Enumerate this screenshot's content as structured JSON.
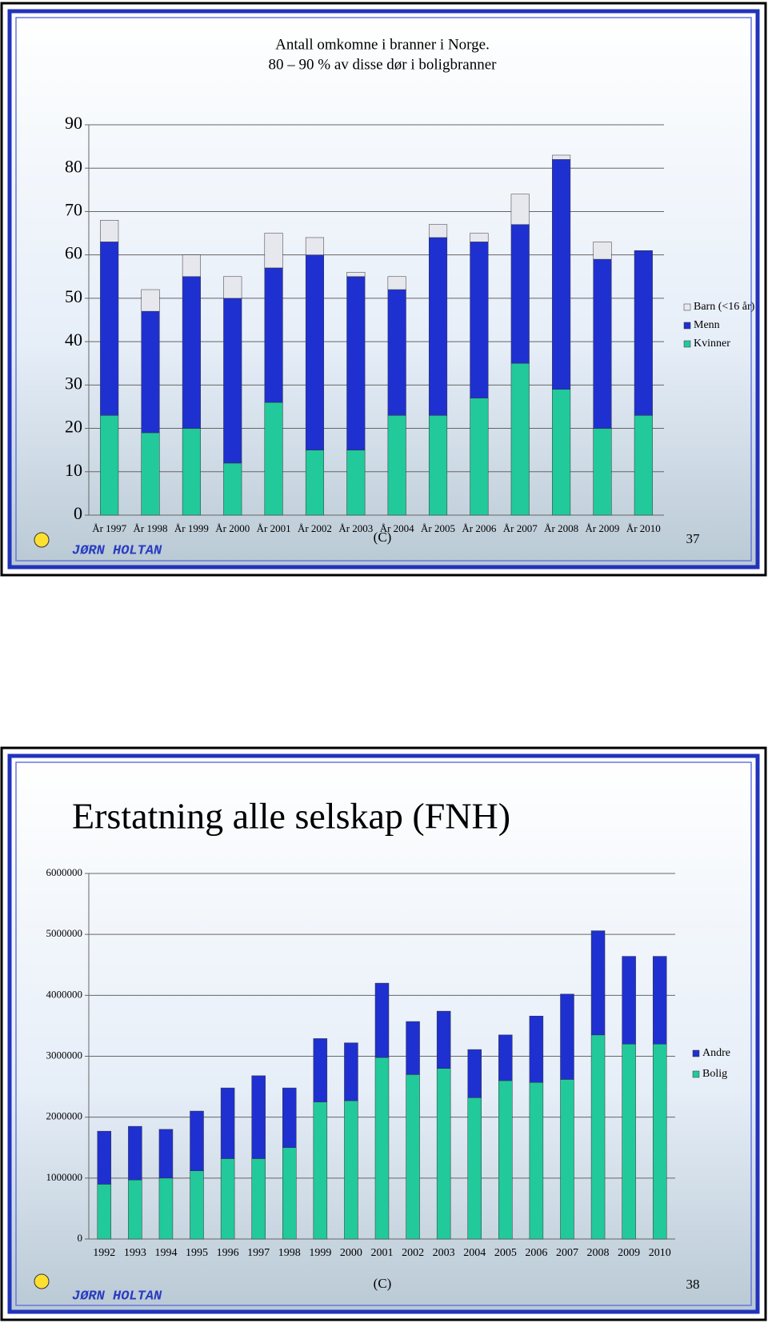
{
  "chart_data": [
    {
      "type": "stacked-bar",
      "title": "Antall omkomne i branner i Norge.",
      "subtitle": "80 – 90 % av disse dør i boligbranner",
      "categories": [
        "År 1997",
        "År 1998",
        "År 1999",
        "År 2000",
        "År 2001",
        "År 2002",
        "År 2003",
        "År 2004",
        "År 2005",
        "År 2006",
        "År 2007",
        "År 2008",
        "År 2009",
        "År 2010"
      ],
      "series": [
        {
          "name": "Kvinner",
          "color": "#22c99b",
          "values": [
            23,
            19,
            20,
            12,
            26,
            15,
            15,
            23,
            23,
            27,
            35,
            29,
            20,
            23
          ]
        },
        {
          "name": "Menn",
          "color": "#1f30d0",
          "values": [
            40,
            28,
            35,
            38,
            31,
            45,
            40,
            29,
            41,
            36,
            32,
            53,
            39,
            38
          ]
        },
        {
          "name": "Barn (<16 år)",
          "color": "#e6e8ee",
          "values": [
            5,
            5,
            5,
            5,
            8,
            4,
            1,
            3,
            3,
            2,
            7,
            1,
            4,
            0
          ]
        }
      ],
      "ylim": [
        0,
        90
      ],
      "yticks": [
        0,
        10,
        20,
        30,
        40,
        50,
        60,
        70,
        80,
        90
      ],
      "grid": true,
      "legend": "right"
    },
    {
      "type": "stacked-bar",
      "title": "Erstatning alle selskap (FNH)",
      "categories": [
        "1992",
        "1993",
        "1994",
        "1995",
        "1996",
        "1997",
        "1998",
        "1999",
        "2000",
        "2001",
        "2002",
        "2003",
        "2004",
        "2005",
        "2006",
        "2007",
        "2008",
        "2009",
        "2010"
      ],
      "series": [
        {
          "name": "Bolig",
          "color": "#22c99b",
          "values": [
            900000,
            970000,
            1000000,
            1120000,
            1320000,
            1320000,
            1500000,
            2250000,
            2270000,
            2980000,
            2700000,
            2800000,
            2320000,
            2600000,
            2570000,
            2620000,
            3350000,
            3200000,
            3200000
          ]
        },
        {
          "name": "Andre",
          "color": "#1f30d0",
          "values": [
            870000,
            880000,
            800000,
            980000,
            1160000,
            1360000,
            980000,
            1040000,
            950000,
            1220000,
            870000,
            940000,
            790000,
            750000,
            1090000,
            1400000,
            1710000,
            1440000,
            1440000
          ]
        }
      ],
      "ylim": [
        0,
        6000000
      ],
      "yticks": [
        0,
        1000000,
        2000000,
        3000000,
        4000000,
        5000000,
        6000000
      ],
      "grid": true,
      "legend": "right"
    }
  ],
  "footers": [
    {
      "author": "JØRN HOLTAN",
      "copyright": "(C)",
      "page": "37"
    },
    {
      "author": "JØRN HOLTAN",
      "copyright": "(C)",
      "page": "38"
    }
  ]
}
